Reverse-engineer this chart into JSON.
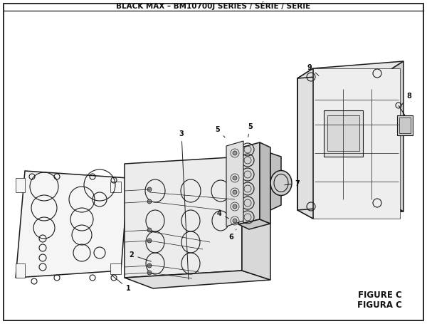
{
  "title": "BLACK MAX – BM10700J SERIES / SÉRIE / SERIE",
  "figure_label": "FIGURE C",
  "figura_label": "FIGURA C",
  "bg_color": "#ffffff",
  "line_color": "#1a1a1a",
  "figsize": [
    6.0,
    4.55
  ],
  "dpi": 100,
  "fig_w": 600,
  "fig_h": 455
}
